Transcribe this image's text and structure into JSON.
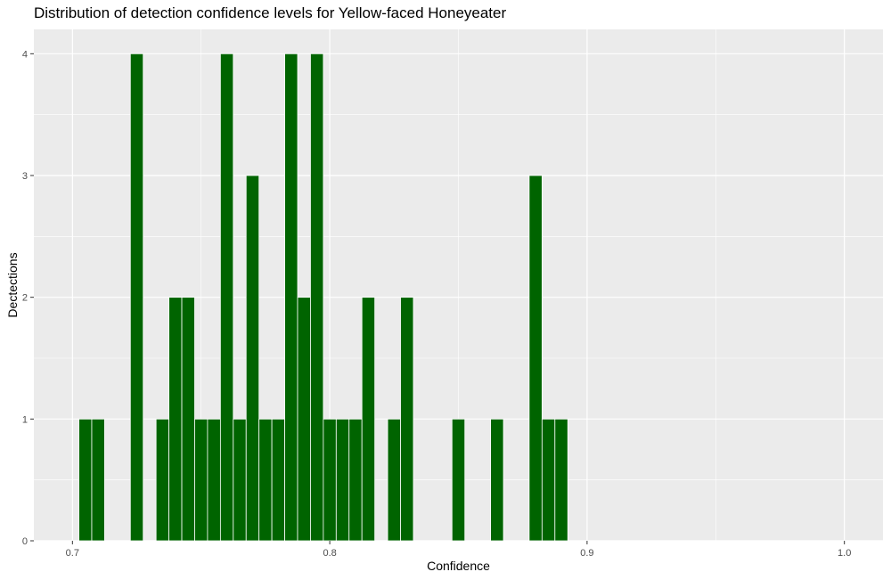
{
  "chart_data": {
    "type": "bar",
    "title": "Distribution of detection confidence levels for Yellow-faced Honeyeater",
    "xlabel": "Confidence",
    "ylabel": "Dectections",
    "xlim": [
      0.685,
      1.015
    ],
    "ylim": [
      0,
      4.2
    ],
    "x_ticks": [
      0.7,
      0.8,
      0.9,
      1.0
    ],
    "x_tick_labels": [
      "0.7",
      "0.8",
      "0.9",
      "1.0"
    ],
    "y_ticks": [
      0,
      1,
      2,
      3,
      4
    ],
    "y_tick_labels": [
      "0",
      "1",
      "2",
      "3",
      "4"
    ],
    "bin_width": 0.005,
    "bar_color": "#006400",
    "panel_background": "#EBEBEB",
    "grid": true,
    "x": [
      0.705,
      0.71,
      0.725,
      0.735,
      0.74,
      0.745,
      0.75,
      0.755,
      0.76,
      0.765,
      0.77,
      0.775,
      0.78,
      0.785,
      0.79,
      0.795,
      0.8,
      0.805,
      0.81,
      0.815,
      0.825,
      0.83,
      0.85,
      0.865,
      0.88,
      0.885,
      0.89
    ],
    "values": [
      1,
      1,
      4,
      1,
      2,
      2,
      1,
      1,
      4,
      1,
      3,
      1,
      1,
      4,
      2,
      4,
      1,
      1,
      1,
      2,
      1,
      2,
      1,
      1,
      3,
      1,
      1
    ]
  }
}
